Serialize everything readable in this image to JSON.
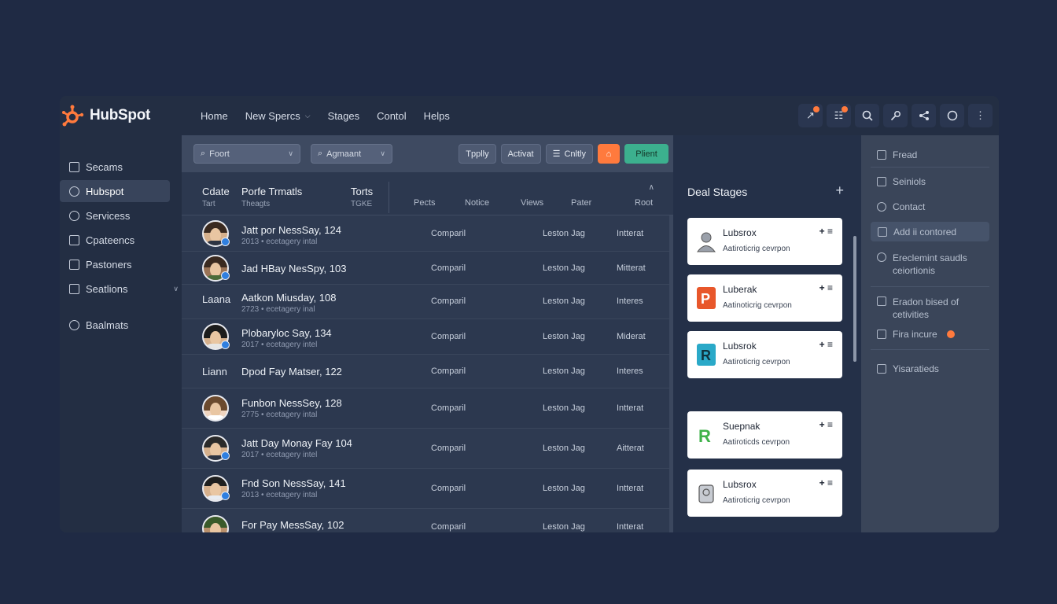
{
  "brand": {
    "name": "HubSpot",
    "accent": "#ff7a3d"
  },
  "nav": {
    "items": [
      {
        "label": "Home"
      },
      {
        "label": "New Spercs",
        "has_dropdown": true
      },
      {
        "label": "Stages"
      },
      {
        "label": "Contol"
      },
      {
        "label": "Helps"
      }
    ],
    "icons": [
      "notifications-icon",
      "messages-icon",
      "search-icon",
      "settings-icon",
      "share-icon",
      "help-icon",
      "more-icon"
    ]
  },
  "sidebar": {
    "items": [
      {
        "label": "Secams",
        "icon": "contacts-icon"
      },
      {
        "label": "Hubspot",
        "icon": "users-icon",
        "active": true
      },
      {
        "label": "Servicess",
        "icon": "service-icon"
      },
      {
        "label": "Cpateencs",
        "icon": "calendar-icon"
      },
      {
        "label": "Pastoners",
        "icon": "partners-icon"
      },
      {
        "label": "Seatlions",
        "icon": "sections-icon",
        "has_dropdown": true
      },
      {
        "label": "Baalmats",
        "icon": "info-icon"
      }
    ]
  },
  "toolbar": {
    "filter1": "Foort",
    "filter2": "Agmaant",
    "btn_tpply": "Tpplly",
    "btn_activat": "Activat",
    "btn_cntly": "Cnltly",
    "btn_plient": "Plient"
  },
  "table": {
    "header": {
      "col_a_title": "Cdate",
      "col_a_sub": "Tart",
      "col_b_title": "Porfe Trmatls",
      "col_b_sub": "Theagts",
      "col_c_title": "Torts",
      "col_c_sub": "TGKE",
      "cols": [
        "Pects",
        "Notice",
        "Views",
        "Pater",
        "Root"
      ]
    },
    "rows": [
      {
        "avatar": true,
        "name": "Jatt por NessSay, 124",
        "sub": "2013 • ecetagery intal",
        "c1": "Comparil",
        "c2": "Leston Jag",
        "c3": "Intterat"
      },
      {
        "avatar": true,
        "name": "Jad HBay NesSpy, 103",
        "sub": "",
        "c1": "Comparil",
        "c2": "Leston Jag",
        "c3": "Mitterat"
      },
      {
        "label": "Laana",
        "name": "Aatkon Miusday, 108",
        "sub": "2723 • ecetagery inal",
        "c1": "Comparil",
        "c2": "Leston Jag",
        "c3": "Interes"
      },
      {
        "avatar": true,
        "name": "Plobaryloc Say, 134",
        "sub": "2017 • ecetagery intel",
        "c1": "Comparil",
        "c2": "Leston Jag",
        "c3": "Miderat"
      },
      {
        "label": "Liann",
        "name": "Dpod Fay Matser, 122",
        "sub": "",
        "c1": "Comparil",
        "c2": "Leston Jag",
        "c3": "Interes"
      },
      {
        "avatar": true,
        "name": "Funbon NessSey, 128",
        "sub": "2775 • ecetagery intal",
        "c1": "Comparil",
        "c2": "Leston Jag",
        "c3": "Intterat"
      },
      {
        "avatar": true,
        "name": "Jatt Day Monay Fay 104",
        "sub": "2017 • ecetagery intel",
        "c1": "Comparil",
        "c2": "Leston Jag",
        "c3": "Aitterat"
      },
      {
        "avatar": true,
        "name": "Fnd Son NessSay, 141",
        "sub": "2013 • ecetagery intal",
        "c1": "Comparil",
        "c2": "Leston Jag",
        "c3": "Intterat"
      },
      {
        "avatar": true,
        "name": "For Pay MessSay, 102",
        "sub": "",
        "c1": "Comparil",
        "c2": "Leston Jag",
        "c3": "Intterat"
      }
    ]
  },
  "deals": {
    "title": "Deal Stages",
    "cards": [
      {
        "name": "Lubsrox",
        "sub": "Aatiroticrig cevrpon",
        "logo_color": "#8a8f99",
        "logo": "person"
      },
      {
        "name": "Luberak",
        "sub": "Aatinoticrig cevrpon",
        "logo_color": "#e8572b",
        "logo": "letter"
      },
      {
        "name": "Lubsrok",
        "sub": "Aatiroticrig cevrpon",
        "logo_color": "#2aa9c8",
        "logo": "letter"
      },
      {
        "name": "Suepnak",
        "sub": "Aatiroticds cevrpon",
        "logo_color": "#3fb24a",
        "logo": "letter"
      },
      {
        "name": "Lubsrox",
        "sub": "Aatiroticrig cevrpon",
        "logo_color": "#7d8490",
        "logo": "device"
      }
    ],
    "card_action": "+ ≡"
  },
  "right_panel": {
    "items": [
      {
        "label": "Fread",
        "icon": "feed-icon"
      },
      {
        "label": "Seiniols",
        "icon": "settings-icon"
      },
      {
        "label": "Contact",
        "icon": "contact-icon"
      },
      {
        "label": "Add ii contored",
        "icon": "add-icon",
        "active": true
      },
      {
        "label": "Ereclemint saudls ceiortionis",
        "icon": "clock-icon"
      },
      {
        "label": "Eradon bised of cetivities",
        "icon": "link-icon"
      },
      {
        "label": "Fira incure",
        "icon": "mail-icon",
        "badge": true
      },
      {
        "label": "Yisaratieds",
        "icon": "lock-icon"
      }
    ]
  }
}
